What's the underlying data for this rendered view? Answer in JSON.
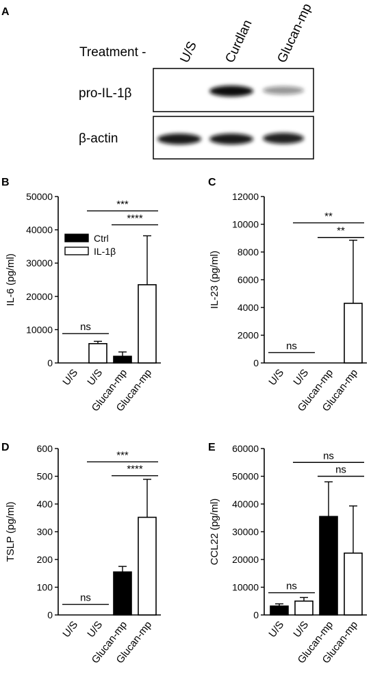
{
  "panel_a": {
    "letter": "A",
    "treatment_label": "Treatment -",
    "lanes": [
      "U/S",
      "Curdlan",
      "Glucan-mp"
    ],
    "rows": [
      {
        "label": "pro-IL-1β",
        "band_intensity": [
          0.0,
          1.0,
          0.45
        ]
      },
      {
        "label": "β-actin",
        "band_intensity": [
          0.95,
          0.95,
          0.92
        ]
      }
    ]
  },
  "chart_data": [
    {
      "type": "bar",
      "panel": "B",
      "ylabel": "IL-6 (pg/ml)",
      "ylim": [
        0,
        50000
      ],
      "yticks": [
        0,
        10000,
        20000,
        30000,
        40000,
        50000
      ],
      "tick_labels": [
        "0",
        "10000",
        "20000",
        "30000",
        "40000",
        "50000"
      ],
      "categories": [
        "U/S",
        "U/S",
        "Glucan-mp",
        "Glucan-mp"
      ],
      "values": [
        0,
        5800,
        2000,
        23500
      ],
      "errors": [
        0,
        700,
        1300,
        14700
      ],
      "fills": [
        "black",
        "white",
        "black",
        "white"
      ],
      "legend": {
        "entries": [
          {
            "name": "Ctrl",
            "fill": "black"
          },
          {
            "name": "IL-1β",
            "fill": "white"
          }
        ],
        "position": "upper-left"
      },
      "annotations": [
        {
          "label": "ns",
          "from": 0,
          "to": 1,
          "y": 8800
        },
        {
          "label": "***",
          "from": 1,
          "to": 3,
          "y": 45700
        },
        {
          "label": "****",
          "from": 2,
          "to": 3,
          "y": 41500
        }
      ]
    },
    {
      "type": "bar",
      "panel": "C",
      "ylabel": "IL-23 (pg/ml)",
      "ylim": [
        0,
        12000
      ],
      "yticks": [
        0,
        2000,
        4000,
        6000,
        8000,
        10000,
        12000
      ],
      "tick_labels": [
        "0",
        "2000",
        "4000",
        "6000",
        "8000",
        "10000",
        "12000"
      ],
      "categories": [
        "U/S",
        "U/S",
        "Glucan-mp",
        "Glucan-mp"
      ],
      "values": [
        0,
        0,
        0,
        4300
      ],
      "errors": [
        0,
        0,
        0,
        4550
      ],
      "fills": [
        "black",
        "white",
        "black",
        "white"
      ],
      "annotations": [
        {
          "label": "ns",
          "from": 0,
          "to": 1,
          "y": 750
        },
        {
          "label": "**",
          "from": 1,
          "to": 3,
          "y": 10100
        },
        {
          "label": "**",
          "from": 2,
          "to": 3,
          "y": 9050
        }
      ]
    },
    {
      "type": "bar",
      "panel": "D",
      "ylabel": "TSLP (pg/ml)",
      "ylim": [
        0,
        600
      ],
      "yticks": [
        0,
        100,
        200,
        300,
        400,
        500,
        600
      ],
      "tick_labels": [
        "0",
        "100",
        "200",
        "300",
        "400",
        "500",
        "600"
      ],
      "categories": [
        "U/S",
        "U/S",
        "Glucan-mp",
        "Glucan-mp"
      ],
      "values": [
        0,
        0,
        155,
        352
      ],
      "errors": [
        0,
        0,
        20,
        137
      ],
      "fills": [
        "black",
        "white",
        "black",
        "white"
      ],
      "annotations": [
        {
          "label": "ns",
          "from": 0,
          "to": 1,
          "y": 38
        },
        {
          "label": "***",
          "from": 1,
          "to": 3,
          "y": 552
        },
        {
          "label": "****",
          "from": 2,
          "to": 3,
          "y": 502
        }
      ]
    },
    {
      "type": "bar",
      "panel": "E",
      "ylabel": "CCL22 (pg/ml)",
      "ylim": [
        0,
        60000
      ],
      "yticks": [
        0,
        10000,
        20000,
        30000,
        40000,
        50000,
        60000
      ],
      "tick_labels": [
        "0",
        "10000",
        "20000",
        "30000",
        "40000",
        "50000",
        "60000"
      ],
      "categories": [
        "U/S",
        "U/S",
        "Glucan-mp",
        "Glucan-mp"
      ],
      "values": [
        3200,
        5000,
        35500,
        22300
      ],
      "errors": [
        800,
        1300,
        12500,
        17000
      ],
      "fills": [
        "black",
        "white",
        "black",
        "white"
      ],
      "annotations": [
        {
          "label": "ns",
          "from": 0,
          "to": 1,
          "y": 8000
        },
        {
          "label": "ns",
          "from": 1,
          "to": 3,
          "y": 55000
        },
        {
          "label": "ns",
          "from": 2,
          "to": 3,
          "y": 50000
        }
      ]
    }
  ]
}
